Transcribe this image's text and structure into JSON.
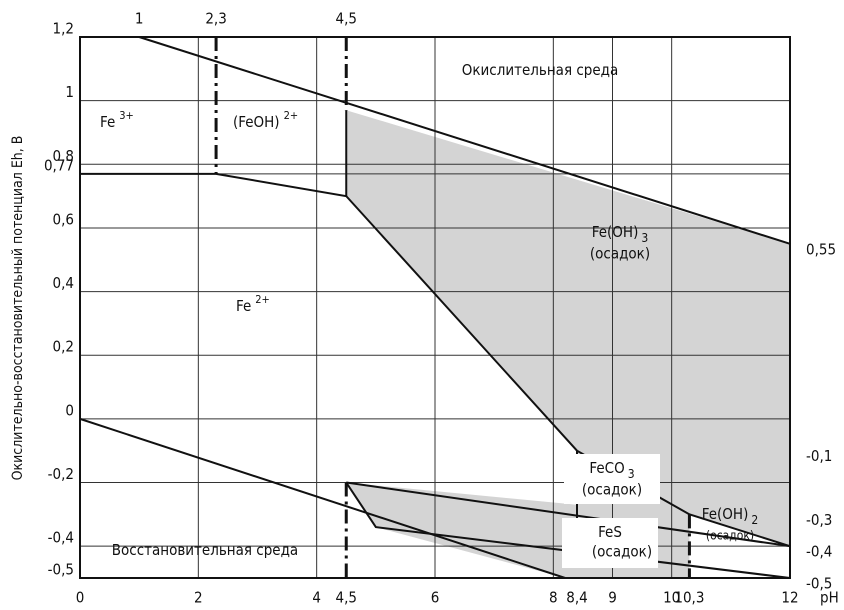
{
  "chart_data": {
    "type": "line",
    "xlabel": "pH",
    "ylabel": "Окислительно-восстановительный потенциал Eh, В",
    "xlim": [
      0,
      12
    ],
    "ylim": [
      -0.5,
      1.2
    ],
    "y2lim": [
      -0.5,
      1.2
    ],
    "xticks": [
      0,
      2,
      4,
      {
        "value": 4.5,
        "label": "4,5"
      },
      6,
      8,
      {
        "value": 8.4,
        "label": "8,4"
      },
      9,
      10,
      {
        "value": 10.3,
        "label": "10,3"
      },
      12
    ],
    "x2ticks": [
      1,
      {
        "value": 2.3,
        "label": "2,3"
      },
      {
        "value": 4.5,
        "label": "4,5"
      }
    ],
    "yticks": [
      {
        "value": -0.5,
        "label": "-0,5"
      },
      {
        "value": -0.4,
        "label": "-0,4"
      },
      {
        "value": -0.2,
        "label": "-0,2"
      },
      0,
      {
        "value": 0.2,
        "label": "0,2"
      },
      {
        "value": 0.4,
        "label": "0,4"
      },
      {
        "value": 0.6,
        "label": "0,6"
      },
      {
        "value": 0.77,
        "label": "0,77"
      },
      {
        "value": 0.8,
        "label": "0,8"
      },
      1,
      {
        "value": 1.2,
        "label": "1,2"
      }
    ],
    "y2ticks": [
      {
        "value": 0.55,
        "label": "0,55"
      },
      {
        "value": -0.1,
        "label": "-0,1"
      },
      {
        "value": -0.3,
        "label": "-0,3"
      },
      {
        "value": -0.4,
        "label": "-0,4"
      },
      {
        "value": -0.5,
        "label": "-0,5"
      }
    ],
    "grid": true,
    "region_color": "#d4d4d4",
    "regions": [
      {
        "x": [
          4.5,
          12,
          12,
          10.3,
          8.4,
          4.5
        ],
        "y": [
          0.97,
          0.55,
          -0.4,
          -0.3,
          -0.1,
          0.7
        ]
      },
      {
        "x": [
          4.5,
          8.4,
          8.4,
          10.3,
          10.3,
          8.2,
          5
        ],
        "y": [
          -0.2,
          -0.27,
          -0.1,
          -0.3,
          -0.5,
          -0.5,
          -0.34
        ]
      }
    ],
    "boundaries": [
      {
        "style": "solid",
        "x": [
          1,
          12
        ],
        "y": [
          1.2,
          0.55
        ]
      },
      {
        "style": "solid",
        "x": [
          0,
          2.3,
          4.5,
          8.4,
          10.3,
          12
        ],
        "y": [
          0.77,
          0.77,
          0.7,
          -0.1,
          -0.3,
          -0.4
        ]
      },
      {
        "style": "solid",
        "x": [
          0,
          8.2
        ],
        "y": [
          0,
          -0.5
        ]
      },
      {
        "style": "solid",
        "x": [
          4.5,
          12
        ],
        "y": [
          -0.2,
          -0.4
        ]
      },
      {
        "style": "solid",
        "x": [
          4.5,
          5,
          12
        ],
        "y": [
          -0.2,
          -0.34,
          -0.5
        ]
      },
      {
        "style": "solid",
        "x": [
          8.4,
          8.4
        ],
        "y": [
          -0.1,
          -0.34
        ]
      },
      {
        "style": "solid",
        "x": [
          4.5,
          4.5
        ],
        "y": [
          0.97,
          0.7
        ]
      },
      {
        "style": "dashdot",
        "x": [
          2.3,
          2.3
        ],
        "y": [
          1.2,
          0.77
        ]
      },
      {
        "style": "dashdot",
        "x": [
          4.5,
          4.5
        ],
        "y": [
          1.2,
          0.97
        ]
      },
      {
        "style": "dashdot",
        "x": [
          4.5,
          4.5
        ],
        "y": [
          -0.2,
          -0.5
        ]
      },
      {
        "style": "dashdot",
        "x": [
          10.3,
          10.3
        ],
        "y": [
          -0.3,
          -0.5
        ]
      }
    ],
    "annotations": [
      {
        "text": "Окислительная среда"
      },
      {
        "text": "Fe",
        "sup": "3+"
      },
      {
        "text": "(FeOH)",
        "sup": "2+"
      },
      {
        "text": "Fe",
        "sup": "2+"
      },
      {
        "text": "Fe(OH)",
        "sub": "3",
        "note": "(осадок)"
      },
      {
        "text": "FeCO",
        "sub": "3",
        "note": "(осадок)"
      },
      {
        "text": "FeS",
        "note": "(осадок)"
      },
      {
        "text": "Fe(OH)",
        "sub": "2",
        "note": "(осадок)"
      },
      {
        "text": "Восстановительная среда"
      }
    ]
  }
}
